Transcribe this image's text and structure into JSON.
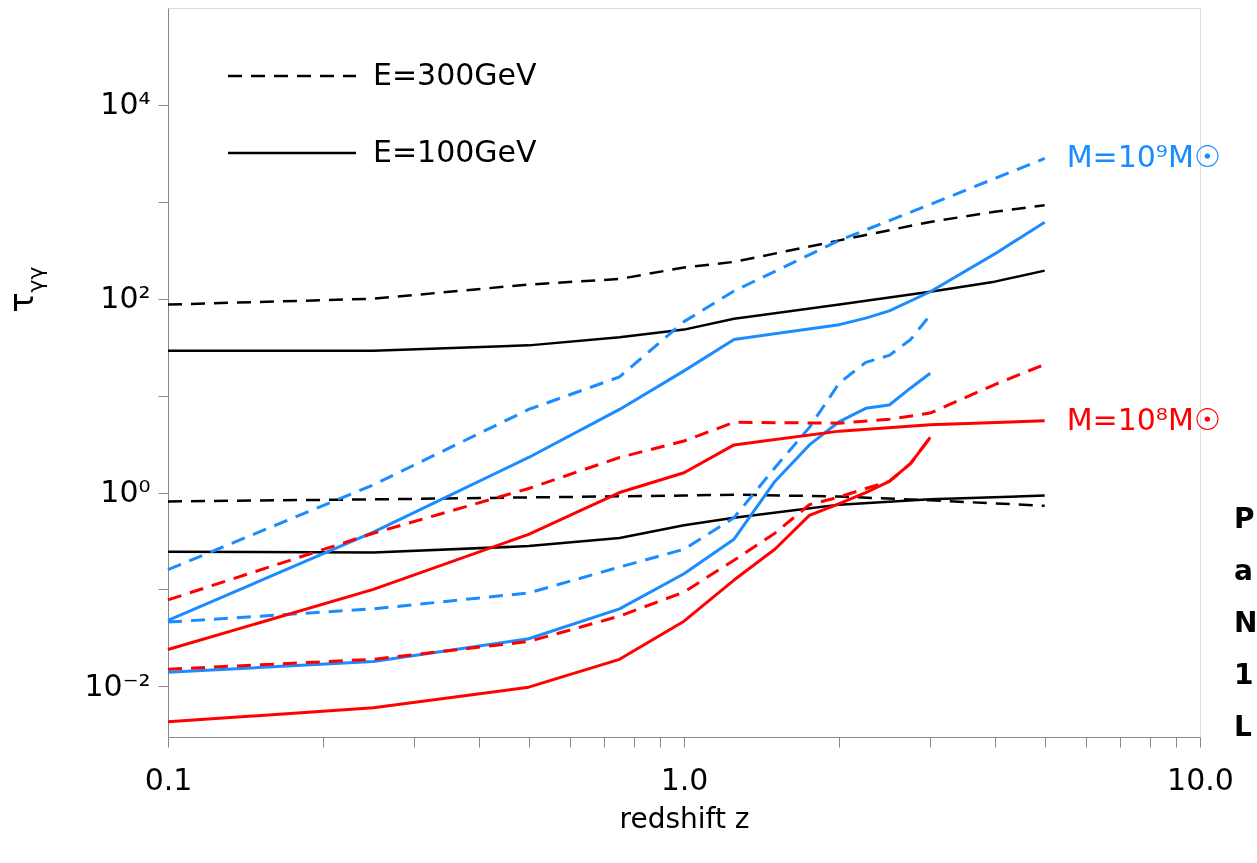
{
  "chart_data": {
    "type": "line",
    "xlabel": "redshift z",
    "ylabel": "τ$_{γγ}$",
    "log": "xy",
    "grid": false,
    "legend": "top left",
    "xlim": [
      0.1,
      10
    ],
    "ylim": [
      0.003,
      100000
    ],
    "xticks": [
      0.1,
      {
        "value": 0.2,
        "label": null
      },
      {
        "value": 0.3,
        "label": null
      },
      {
        "value": 0.4,
        "label": null
      },
      {
        "value": 0.5,
        "label": null
      },
      {
        "value": 0.6,
        "label": null
      },
      {
        "value": 0.7,
        "label": null
      },
      {
        "value": 0.8,
        "label": null
      },
      {
        "value": 0.9,
        "label": null
      },
      {
        "value": 1,
        "label": "1.0"
      },
      {
        "value": 2,
        "label": null
      },
      {
        "value": 3,
        "label": null
      },
      {
        "value": 4,
        "label": null
      },
      {
        "value": 5,
        "label": null
      },
      {
        "value": 6,
        "label": null
      },
      {
        "value": 7,
        "label": null
      },
      {
        "value": 8,
        "label": null
      },
      {
        "value": 9,
        "label": null
      },
      {
        "value": 10,
        "label": "10.0"
      }
    ],
    "yticks": [
      {
        "value": 0.01,
        "label": "10⁻²"
      },
      {
        "value": 0.1,
        "label": null
      },
      {
        "value": 1,
        "label": "10⁰"
      },
      {
        "value": 10,
        "label": null
      },
      {
        "value": 100,
        "label": "10²"
      },
      {
        "value": 1000,
        "label": null
      },
      {
        "value": 10000,
        "label": "10⁴"
      }
    ],
    "series": [
      {
        "name": "E=300GeV",
        "color": "#000000",
        "line_style": "dashed",
        "x": [
          0.1,
          0.25,
          0.5,
          0.75,
          1,
          1.25,
          2,
          3,
          4,
          5
        ],
        "values": [
          87,
          100,
          140,
          160,
          210,
          240,
          400,
          620,
          790,
          920
        ]
      },
      {
        "name": "E=100GeV",
        "color": "#000000",
        "line_style": "solid",
        "x": [
          0.1,
          0.25,
          0.5,
          0.75,
          1,
          1.25,
          2,
          3,
          4,
          5
        ],
        "values": [
          29,
          29,
          33,
          40,
          48,
          62,
          87,
          118,
          150,
          195
        ]
      },
      {
        "color": "#000000",
        "line_style": "dashed",
        "x": [
          0.1,
          0.25,
          0.5,
          1,
          1.25,
          2,
          3,
          5
        ],
        "values": [
          0.81,
          0.85,
          0.89,
          0.93,
          0.95,
          0.91,
          0.83,
          0.73
        ]
      },
      {
        "color": "#000000",
        "line_style": "solid",
        "x": [
          0.1,
          0.25,
          0.5,
          0.75,
          1,
          1.25,
          2,
          3,
          5
        ],
        "values": [
          0.245,
          0.24,
          0.28,
          0.34,
          0.46,
          0.55,
          0.75,
          0.85,
          0.93
        ]
      },
      {
        "name": "M=10⁹M☉",
        "color": "#1a8cff",
        "line_style": "dashed",
        "x": [
          0.1,
          0.25,
          0.5,
          0.75,
          1,
          1.25,
          2,
          3,
          5
        ],
        "values": [
          0.16,
          1.2,
          7.2,
          15.6,
          58,
          120,
          400,
          940,
          2800
        ]
      },
      {
        "color": "#1a8cff",
        "line_style": "solid",
        "x": [
          0.1,
          0.25,
          0.5,
          0.75,
          1,
          1.25,
          2,
          2.25,
          2.5,
          3,
          4,
          5
        ],
        "values": [
          0.048,
          0.39,
          2.3,
          7.2,
          18,
          38,
          54,
          63,
          75,
          118,
          290,
          615
        ]
      },
      {
        "color": "#1a8cff",
        "line_style": "dashed",
        "x": [
          0.1,
          0.25,
          0.5,
          0.75,
          1,
          1.25,
          1.5,
          1.75,
          2,
          2.25,
          2.5,
          2.75,
          3
        ],
        "values": [
          0.046,
          0.063,
          0.092,
          0.17,
          0.26,
          0.55,
          1.8,
          4.7,
          13.5,
          22,
          26,
          38,
          68
        ]
      },
      {
        "color": "#1a8cff",
        "line_style": "solid",
        "x": [
          0.1,
          0.25,
          0.5,
          0.75,
          1,
          1.25,
          1.5,
          1.75,
          2,
          2.25,
          2.5,
          2.75,
          3
        ],
        "values": [
          0.014,
          0.018,
          0.031,
          0.063,
          0.145,
          0.33,
          1.3,
          3.1,
          5.4,
          7.4,
          8,
          12,
          17
        ]
      },
      {
        "color": "#ff0000",
        "line_style": "dashed",
        "x": [
          0.1,
          0.25,
          0.5,
          0.75,
          1,
          1.25,
          2,
          2.5,
          3,
          4,
          5
        ],
        "values": [
          0.078,
          0.38,
          1.1,
          2.3,
          3.4,
          5.3,
          5.2,
          5.7,
          6.6,
          13,
          21
        ]
      },
      {
        "name": "M=10⁸M☉",
        "color": "#ff0000",
        "line_style": "solid",
        "x": [
          0.1,
          0.25,
          0.5,
          0.75,
          1,
          1.25,
          2,
          3,
          5
        ],
        "values": [
          0.024,
          0.1,
          0.37,
          1.0,
          1.6,
          3.1,
          4.3,
          5.0,
          5.5
        ]
      },
      {
        "color": "#ff0000",
        "line_style": "dashed",
        "x": [
          0.1,
          0.25,
          0.5,
          0.75,
          1,
          1.25,
          1.5,
          1.75,
          2,
          2.25,
          2.5,
          2.75,
          3
        ],
        "values": [
          0.015,
          0.019,
          0.029,
          0.053,
          0.094,
          0.2,
          0.38,
          0.75,
          0.9,
          1.1,
          1.3,
          2.0,
          3.7
        ]
      },
      {
        "color": "#ff0000",
        "line_style": "solid",
        "x": [
          0.1,
          0.25,
          0.5,
          0.75,
          1,
          1.25,
          1.5,
          1.75,
          2,
          2.25,
          2.5,
          2.75,
          3
        ],
        "values": [
          0.0043,
          0.006,
          0.0098,
          0.019,
          0.047,
          0.125,
          0.26,
          0.58,
          0.77,
          1.0,
          1.3,
          2.0,
          3.7
        ]
      }
    ],
    "annotations": [
      "P",
      "a",
      "N",
      "1",
      "L"
    ]
  }
}
